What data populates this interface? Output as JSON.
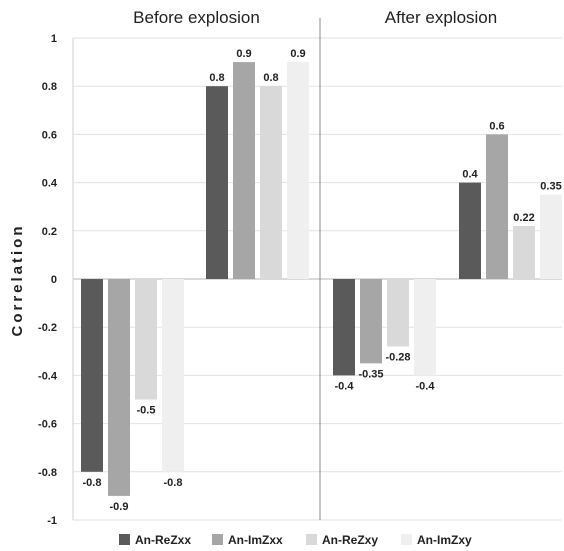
{
  "chart_data": {
    "type": "bar",
    "ylabel": "Correlation",
    "ylim": [
      -1,
      1
    ],
    "yticks": [
      "1",
      "0.8",
      "0.6",
      "0.4",
      "0.2",
      "0",
      "-0.2",
      "-0.4",
      "-0.6",
      "-0.8",
      "-1"
    ],
    "grid": true,
    "legend_position": "bottom",
    "series_names": [
      "An-ReZxx",
      "An-ImZxx",
      "An-ReZxy",
      "An-ImZxy"
    ],
    "colors": [
      "#5a5a5a",
      "#a6a6a6",
      "#d9d9d9",
      "#efefef"
    ],
    "panels": [
      {
        "title": "Before explosion",
        "groups": [
          {
            "values": [
              -0.8,
              -0.9,
              -0.5,
              -0.8
            ],
            "labels": [
              "-0.8",
              "-0.9",
              "-0.5",
              "-0.8"
            ]
          },
          {
            "values": [
              0.8,
              0.9,
              0.8,
              0.9
            ],
            "labels": [
              "0.8",
              "0.9",
              "0.8",
              "0.9"
            ]
          }
        ]
      },
      {
        "title": "After explosion",
        "groups": [
          {
            "values": [
              -0.4,
              -0.35,
              -0.28,
              -0.4
            ],
            "labels": [
              "-0.4",
              "-0.35",
              "-0.28",
              "-0.4"
            ]
          },
          {
            "values": [
              0.4,
              0.6,
              0.22,
              0.35
            ],
            "labels": [
              "0.4",
              "0.6",
              "0.22",
              "0.35"
            ]
          }
        ]
      }
    ]
  }
}
